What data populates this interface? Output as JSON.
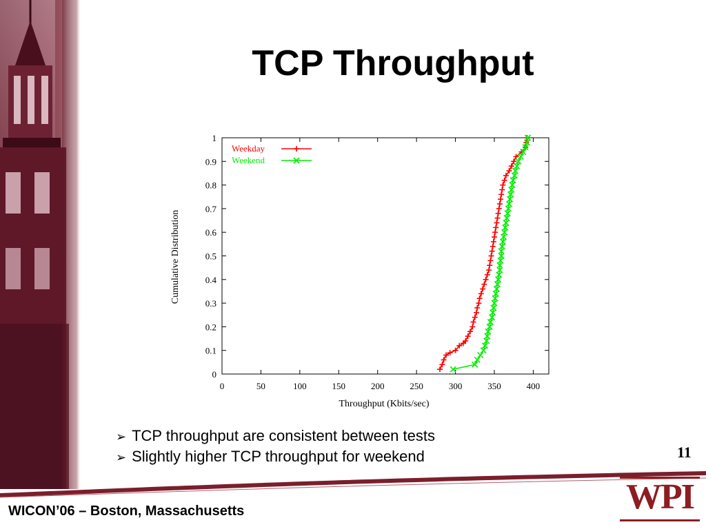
{
  "slide": {
    "title": "TCP Throughput",
    "bullets": [
      "TCP throughput are consistent between tests",
      "Slightly higher TCP throughput for weekend"
    ],
    "page_number": "11",
    "footer": "WICON’06 – Boston, Massachusetts",
    "logo_text": "WPI",
    "bullet_icon": "arrowhead-bullet-icon"
  },
  "colors": {
    "weekday": "#ff0000",
    "weekend": "#00ee00",
    "accent": "#7a1f2b"
  },
  "chart_data": {
    "type": "line",
    "title": "",
    "xlabel": "Throughput (Kbits/sec)",
    "ylabel": "Cumulative Distribution",
    "xlim": [
      0,
      420
    ],
    "ylim": [
      0,
      1
    ],
    "x_ticks": [
      "0",
      "50",
      "100",
      "150",
      "200",
      "250",
      "300",
      "350",
      "400"
    ],
    "y_ticks": [
      "0",
      "0.1",
      "0.2",
      "0.3",
      "0.4",
      "0.5",
      "0.6",
      "0.7",
      "0.8",
      "0.9",
      "1"
    ],
    "grid": false,
    "legend": "top-left",
    "series": [
      {
        "name": "Weekday",
        "color": "#ff0000",
        "marker": "+",
        "points": [
          [
            280,
            0.02
          ],
          [
            283,
            0.04
          ],
          [
            285,
            0.06
          ],
          [
            288,
            0.08
          ],
          [
            293,
            0.09
          ],
          [
            300,
            0.1
          ],
          [
            305,
            0.12
          ],
          [
            310,
            0.13
          ],
          [
            313,
            0.14
          ],
          [
            316,
            0.16
          ],
          [
            319,
            0.18
          ],
          [
            322,
            0.2
          ],
          [
            323,
            0.22
          ],
          [
            325,
            0.24
          ],
          [
            327,
            0.26
          ],
          [
            328,
            0.28
          ],
          [
            330,
            0.3
          ],
          [
            331,
            0.32
          ],
          [
            333,
            0.34
          ],
          [
            335,
            0.36
          ],
          [
            337,
            0.38
          ],
          [
            339,
            0.4
          ],
          [
            341,
            0.42
          ],
          [
            343,
            0.44
          ],
          [
            344,
            0.46
          ],
          [
            345,
            0.48
          ],
          [
            346,
            0.5
          ],
          [
            347,
            0.52
          ],
          [
            348,
            0.54
          ],
          [
            349,
            0.56
          ],
          [
            350,
            0.58
          ],
          [
            351,
            0.6
          ],
          [
            352,
            0.62
          ],
          [
            353,
            0.64
          ],
          [
            354,
            0.66
          ],
          [
            355,
            0.68
          ],
          [
            356,
            0.7
          ],
          [
            357,
            0.72
          ],
          [
            358,
            0.74
          ],
          [
            359,
            0.76
          ],
          [
            360,
            0.78
          ],
          [
            361,
            0.8
          ],
          [
            363,
            0.82
          ],
          [
            365,
            0.84
          ],
          [
            369,
            0.86
          ],
          [
            372,
            0.88
          ],
          [
            375,
            0.9
          ],
          [
            378,
            0.92
          ],
          [
            385,
            0.94
          ],
          [
            390,
            0.96
          ],
          [
            391,
            0.98
          ],
          [
            392,
            1.0
          ]
        ]
      },
      {
        "name": "Weekend",
        "color": "#00ee00",
        "marker": "x",
        "points": [
          [
            297,
            0.02
          ],
          [
            325,
            0.04
          ],
          [
            328,
            0.06
          ],
          [
            332,
            0.08
          ],
          [
            336,
            0.1
          ],
          [
            338,
            0.12
          ],
          [
            340,
            0.14
          ],
          [
            341,
            0.16
          ],
          [
            342,
            0.18
          ],
          [
            344,
            0.2
          ],
          [
            345,
            0.22
          ],
          [
            347,
            0.24
          ],
          [
            348,
            0.26
          ],
          [
            349,
            0.28
          ],
          [
            350,
            0.3
          ],
          [
            351,
            0.32
          ],
          [
            352,
            0.34
          ],
          [
            353,
            0.36
          ],
          [
            354,
            0.38
          ],
          [
            355,
            0.4
          ],
          [
            356,
            0.42
          ],
          [
            357,
            0.44
          ],
          [
            357,
            0.46
          ],
          [
            358,
            0.48
          ],
          [
            359,
            0.5
          ],
          [
            359,
            0.52
          ],
          [
            360,
            0.54
          ],
          [
            361,
            0.56
          ],
          [
            362,
            0.58
          ],
          [
            363,
            0.6
          ],
          [
            364,
            0.62
          ],
          [
            365,
            0.64
          ],
          [
            366,
            0.66
          ],
          [
            367,
            0.68
          ],
          [
            368,
            0.7
          ],
          [
            369,
            0.72
          ],
          [
            370,
            0.74
          ],
          [
            371,
            0.76
          ],
          [
            372,
            0.78
          ],
          [
            373,
            0.8
          ],
          [
            374,
            0.82
          ],
          [
            376,
            0.84
          ],
          [
            377,
            0.86
          ],
          [
            379,
            0.88
          ],
          [
            381,
            0.9
          ],
          [
            384,
            0.92
          ],
          [
            387,
            0.94
          ],
          [
            390,
            0.96
          ],
          [
            392,
            0.98
          ],
          [
            393,
            1.0
          ]
        ]
      }
    ]
  }
}
